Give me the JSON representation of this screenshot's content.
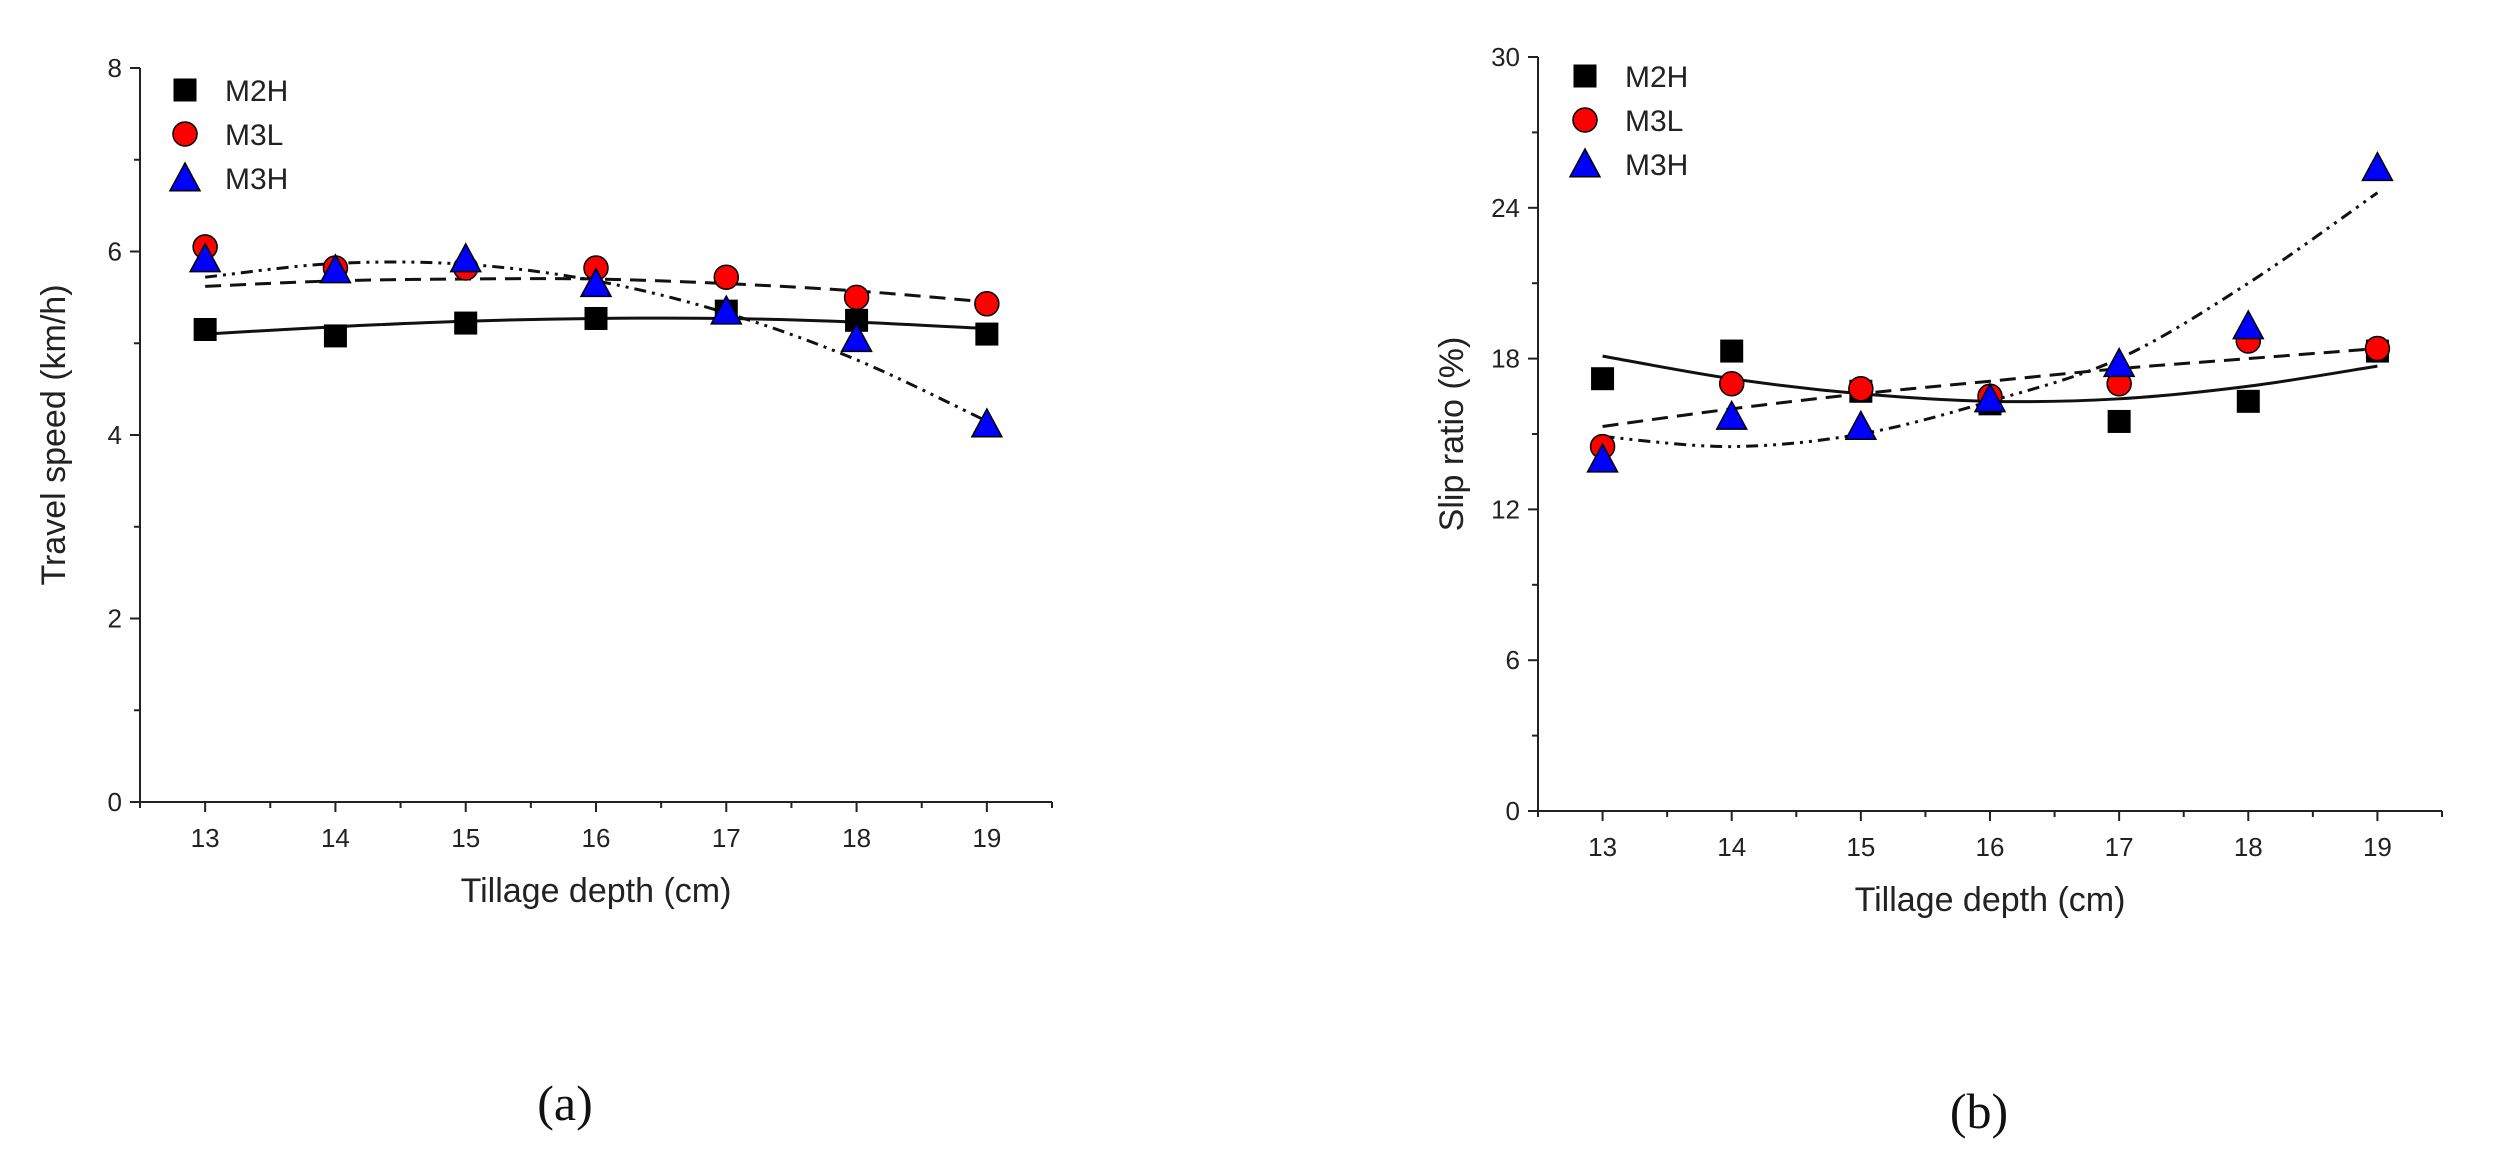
{
  "chart_data": [
    {
      "type": "scatter",
      "panel": "a",
      "panel_label": "(a)",
      "xlabel": "Tillage depth (cm)",
      "ylabel": "Travel speed (km/h)",
      "x": [
        13,
        14,
        15,
        16,
        17,
        18,
        19
      ],
      "xlim": [
        12.5,
        19.5
      ],
      "ylim": [
        0,
        8
      ],
      "xticks": [
        13,
        14,
        15,
        16,
        17,
        18,
        19
      ],
      "yticks": [
        0,
        2,
        4,
        6,
        8
      ],
      "legend_position": "top-left",
      "series": [
        {
          "name": "M2H",
          "marker": "square",
          "color": "#000000",
          "line": "solid",
          "values": [
            5.15,
            5.08,
            5.22,
            5.27,
            5.35,
            5.25,
            5.1
          ],
          "fit": [
            5.1,
            5.18,
            5.24,
            5.27,
            5.27,
            5.23,
            5.16
          ]
        },
        {
          "name": "M3L",
          "marker": "circle",
          "color": "#ff0000",
          "line": "dash",
          "values": [
            6.05,
            5.82,
            5.82,
            5.82,
            5.72,
            5.5,
            5.43
          ],
          "fit": [
            5.62,
            5.68,
            5.7,
            5.7,
            5.65,
            5.57,
            5.45
          ]
        },
        {
          "name": "M3H",
          "marker": "triangle",
          "color": "#0000ff",
          "line": "dashdotdot",
          "values": [
            5.92,
            5.8,
            5.92,
            5.65,
            5.35,
            5.05,
            4.12
          ],
          "fit": [
            5.72,
            5.87,
            5.86,
            5.68,
            5.33,
            4.82,
            4.15
          ]
        }
      ]
    },
    {
      "type": "scatter",
      "panel": "b",
      "panel_label": "(b)",
      "xlabel": "Tillage depth (cm)",
      "ylabel": "Slip ratio (%)",
      "x": [
        13,
        14,
        15,
        16,
        17,
        18,
        19
      ],
      "xlim": [
        12.5,
        19.5
      ],
      "ylim": [
        0,
        30
      ],
      "xticks": [
        13,
        14,
        15,
        16,
        17,
        18,
        19
      ],
      "yticks": [
        0,
        6,
        12,
        18,
        24,
        30
      ],
      "legend_position": "top-left",
      "series": [
        {
          "name": "M2H",
          "marker": "square",
          "color": "#000000",
          "line": "solid",
          "values": [
            17.2,
            18.3,
            16.7,
            16.2,
            15.5,
            16.3,
            18.3
          ],
          "fit": [
            18.1,
            17.2,
            16.6,
            16.3,
            16.4,
            16.9,
            17.7
          ]
        },
        {
          "name": "M3L",
          "marker": "circle",
          "color": "#ff0000",
          "line": "dash",
          "values": [
            14.5,
            17.0,
            16.8,
            16.5,
            17.0,
            18.7,
            18.4
          ],
          "fit": [
            15.3,
            16.0,
            16.6,
            17.1,
            17.6,
            18.0,
            18.4
          ]
        },
        {
          "name": "M3H",
          "marker": "triangle",
          "color": "#0000ff",
          "line": "dashdotdot",
          "values": [
            14.0,
            15.7,
            15.3,
            16.4,
            17.8,
            19.3,
            25.6
          ],
          "fit": [
            14.9,
            14.5,
            15.0,
            16.3,
            18.0,
            21.0,
            24.6
          ]
        }
      ]
    }
  ]
}
